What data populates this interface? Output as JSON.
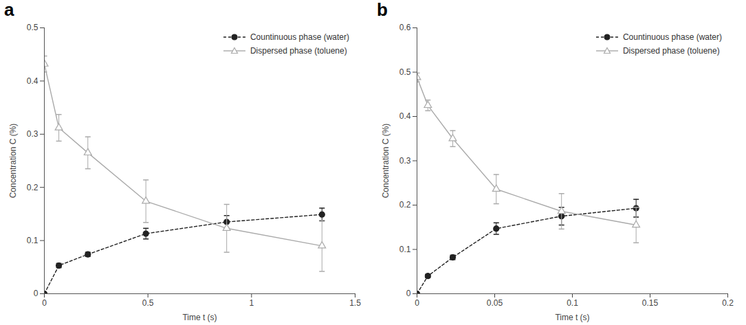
{
  "chart_data": [
    {
      "type": "line",
      "title": "a",
      "x_label": "Time t (s)",
      "y_label": "Concentration C (%)",
      "xlim": [
        0,
        1.5
      ],
      "xticks": [
        0,
        0.5,
        1,
        1.5
      ],
      "ylim": [
        0,
        0.5
      ],
      "yticks": [
        0,
        0.1,
        0.2,
        0.3,
        0.4,
        0.5
      ],
      "legend": "upper right",
      "x": [
        0,
        0.07,
        0.21,
        0.49,
        0.88,
        1.34
      ],
      "series": [
        {
          "name": "Countinuous phase (water)",
          "color": "#222222",
          "marker": "circle",
          "line_style": "dashed",
          "values": [
            0,
            0.053,
            0.074,
            0.113,
            0.135,
            0.149
          ],
          "errors": [
            null,
            0.004,
            0.004,
            0.01,
            0.012,
            0.012
          ]
        },
        {
          "name": "Dispersed phase (toluene)",
          "color": "#aaaaaa",
          "marker": "triangle",
          "line_style": "solid",
          "values": [
            0.432,
            0.312,
            0.265,
            0.174,
            0.123,
            0.09
          ],
          "errors": [
            0.015,
            0.025,
            0.03,
            0.04,
            0.045,
            0.048
          ]
        }
      ]
    },
    {
      "type": "line",
      "title": "b",
      "x_label": "Time t (s)",
      "y_label": "Concentration C (%)",
      "xlim": [
        0,
        0.2
      ],
      "xticks": [
        0,
        0.05,
        0.1,
        0.15,
        0.2
      ],
      "ylim": [
        0,
        0.6
      ],
      "yticks": [
        0,
        0.1,
        0.2,
        0.3,
        0.4,
        0.5,
        0.6
      ],
      "legend": "upper right",
      "x": [
        0,
        0.007,
        0.023,
        0.051,
        0.093,
        0.141
      ],
      "series": [
        {
          "name": "Countinuous phase (water)",
          "color": "#222222",
          "marker": "circle",
          "line_style": "dashed",
          "values": [
            0,
            0.04,
            0.082,
            0.147,
            0.175,
            0.193
          ],
          "errors": [
            null,
            0.004,
            0.005,
            0.013,
            0.02,
            0.02
          ]
        },
        {
          "name": "Dispersed phase (toluene)",
          "color": "#aaaaaa",
          "marker": "triangle",
          "line_style": "solid",
          "values": [
            0.488,
            0.425,
            0.35,
            0.236,
            0.186,
            0.155
          ],
          "errors": [
            0.01,
            0.012,
            0.018,
            0.033,
            0.04,
            0.04
          ]
        }
      ]
    }
  ]
}
